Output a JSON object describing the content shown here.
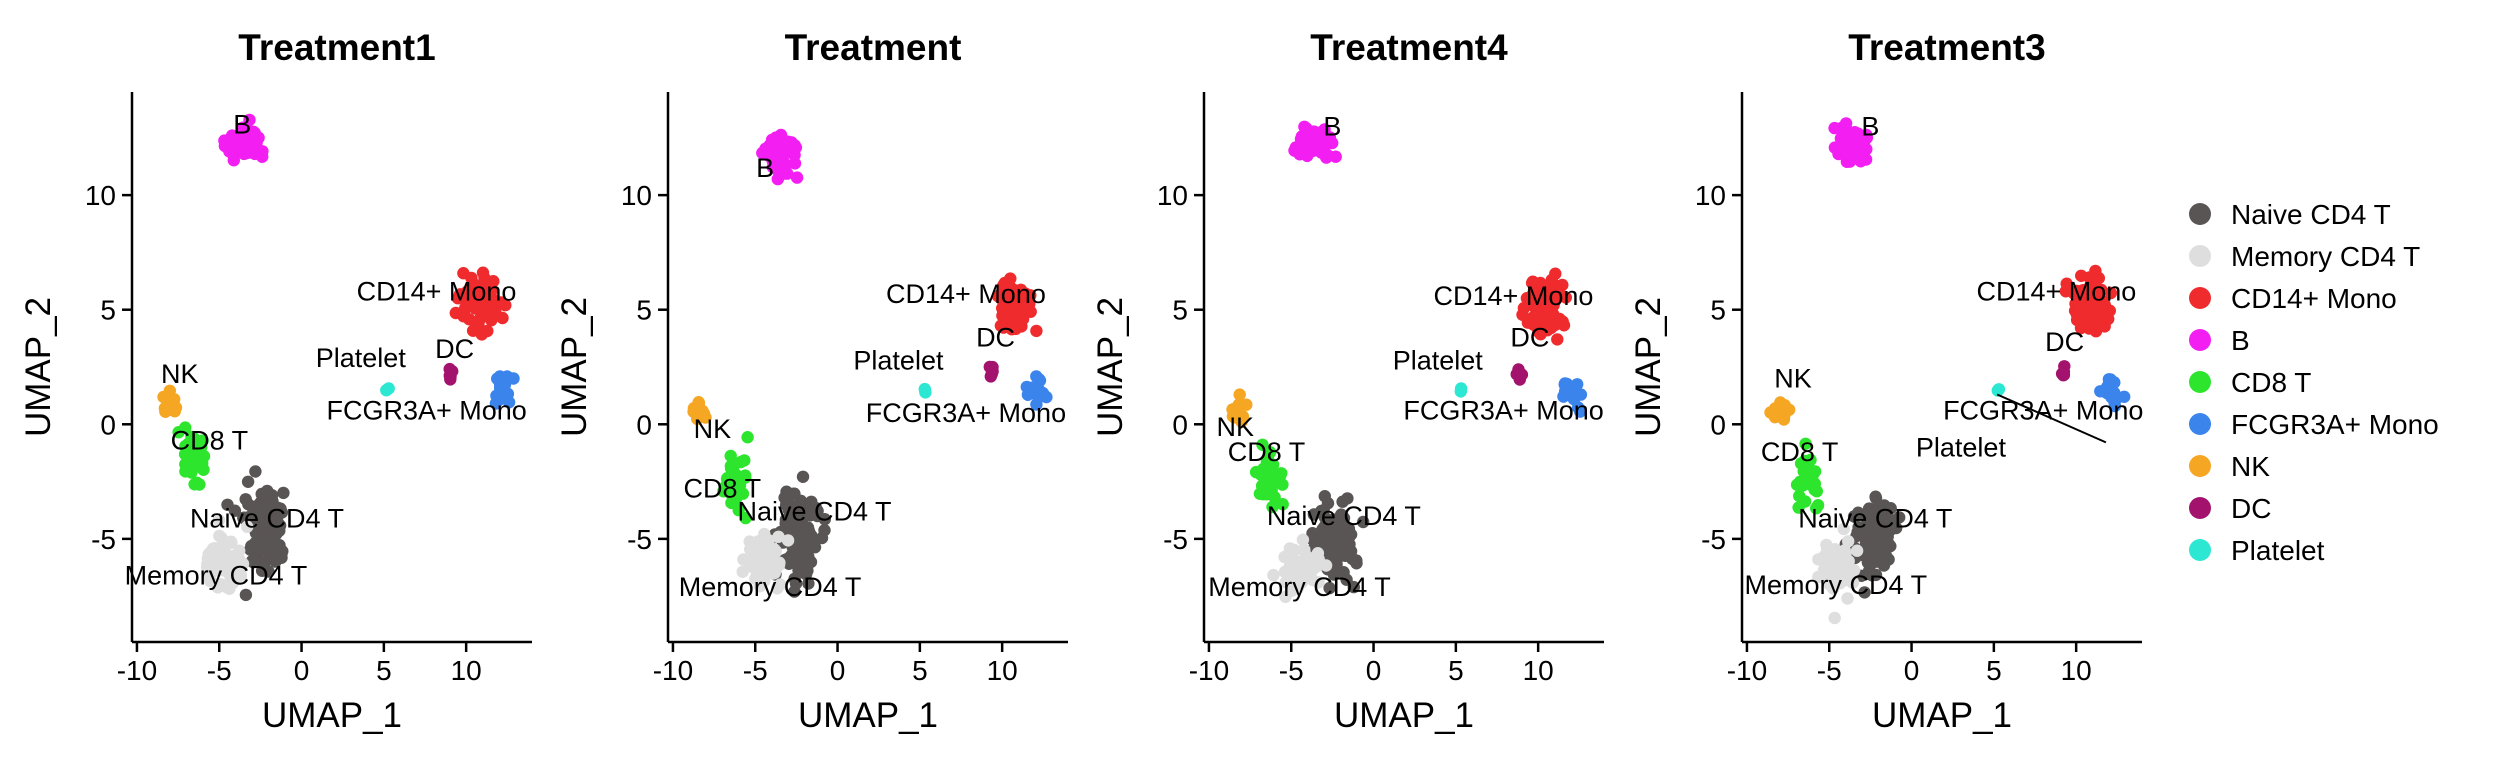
{
  "chart_data": [
    {
      "type": "scatter",
      "title": "Treatment1",
      "xlabel": "UMAP_1",
      "ylabel": "UMAP_2",
      "xlim": [
        -10.3,
        14
      ],
      "ylim": [
        -9.5,
        14.5
      ],
      "xticks": [
        -10,
        -5,
        0,
        5,
        10
      ],
      "yticks": [
        -5,
        0,
        5,
        10
      ],
      "clusters": [
        {
          "name": "B",
          "center": [
            -3.5,
            12.2
          ],
          "spread": [
            1.0,
            0.8
          ],
          "n": 55
        },
        {
          "name": "CD14+ Mono",
          "center": [
            10.8,
            5.3
          ],
          "spread": [
            1.1,
            1.2
          ],
          "n": 75
        },
        {
          "name": "DC",
          "center": [
            9.2,
            2.2
          ],
          "spread": [
            0.25,
            0.3
          ],
          "n": 5
        },
        {
          "name": "FCGR3A+ Mono",
          "center": [
            12.3,
            1.6
          ],
          "spread": [
            0.5,
            0.6
          ],
          "n": 20
        },
        {
          "name": "Platelet",
          "center": [
            5.2,
            1.5
          ],
          "spread": [
            0.1,
            0.1
          ],
          "n": 2
        },
        {
          "name": "NK",
          "center": [
            -8.0,
            0.8
          ],
          "spread": [
            0.5,
            0.45
          ],
          "n": 18
        },
        {
          "name": "CD8 T",
          "center": [
            -6.5,
            -1.5
          ],
          "spread": [
            0.6,
            1.1
          ],
          "n": 38
        },
        {
          "name": "Naive CD4 T",
          "center": [
            -2.3,
            -4.8
          ],
          "spread": [
            1.0,
            1.6
          ],
          "n": 120
        },
        {
          "name": "Memory CD4 T",
          "center": [
            -4.8,
            -6.0
          ],
          "spread": [
            1.1,
            1.0
          ],
          "n": 70
        }
      ],
      "labels": [
        {
          "text": "B",
          "at": [
            -3.6,
            12.7
          ]
        },
        {
          "text": "CD14+ Mono",
          "at": [
            8.2,
            5.4
          ]
        },
        {
          "text": "Platelet",
          "at": [
            3.6,
            2.5
          ]
        },
        {
          "text": "DC",
          "at": [
            9.3,
            2.9
          ]
        },
        {
          "text": "FCGR3A+ Mono",
          "at": [
            7.6,
            0.2
          ]
        },
        {
          "text": "NK",
          "at": [
            -7.4,
            1.8
          ]
        },
        {
          "text": "CD8 T",
          "at": [
            -5.6,
            -1.1
          ]
        },
        {
          "text": "Naive CD4 T",
          "at": [
            -2.1,
            -4.5
          ]
        },
        {
          "text": "Memory CD4 T",
          "at": [
            -5.2,
            -7.0
          ]
        }
      ]
    },
    {
      "type": "scatter",
      "title": "Treatment",
      "xlabel": "UMAP_1",
      "ylabel": "UMAP_2",
      "xlim": [
        -10.3,
        14
      ],
      "ylim": [
        -9.5,
        14.5
      ],
      "xticks": [
        -10,
        -5,
        0,
        5,
        10
      ],
      "yticks": [
        -5,
        0,
        5,
        10
      ],
      "clusters": [
        {
          "name": "B",
          "center": [
            -3.3,
            11.8
          ],
          "spread": [
            0.9,
            0.8
          ],
          "n": 55
        },
        {
          "name": "CD14+ Mono",
          "center": [
            10.6,
            5.2
          ],
          "spread": [
            1.0,
            1.1
          ],
          "n": 75
        },
        {
          "name": "DC",
          "center": [
            9.3,
            2.3
          ],
          "spread": [
            0.25,
            0.3
          ],
          "n": 5
        },
        {
          "name": "FCGR3A+ Mono",
          "center": [
            12.1,
            1.5
          ],
          "spread": [
            0.5,
            0.6
          ],
          "n": 20
        },
        {
          "name": "Platelet",
          "center": [
            5.3,
            1.5
          ],
          "spread": [
            0.1,
            0.1
          ],
          "n": 2
        },
        {
          "name": "NK",
          "center": [
            -8.4,
            0.6
          ],
          "spread": [
            0.45,
            0.45
          ],
          "n": 18
        },
        {
          "name": "CD8 T",
          "center": [
            -6.2,
            -2.5
          ],
          "spread": [
            0.6,
            1.2
          ],
          "n": 38
        },
        {
          "name": "Naive CD4 T",
          "center": [
            -2.5,
            -4.9
          ],
          "spread": [
            1.0,
            1.5
          ],
          "n": 120
        },
        {
          "name": "Memory CD4 T",
          "center": [
            -4.5,
            -6.0
          ],
          "spread": [
            1.1,
            1.0
          ],
          "n": 70
        }
      ],
      "labels": [
        {
          "text": "B",
          "at": [
            -4.4,
            10.8
          ]
        },
        {
          "text": "CD14+ Mono",
          "at": [
            7.8,
            5.3
          ]
        },
        {
          "text": "Platelet",
          "at": [
            3.7,
            2.4
          ]
        },
        {
          "text": "DC",
          "at": [
            9.6,
            3.4
          ]
        },
        {
          "text": "FCGR3A+ Mono",
          "at": [
            7.8,
            0.1
          ]
        },
        {
          "text": "NK",
          "at": [
            -7.6,
            -0.6
          ]
        },
        {
          "text": "CD8 T",
          "at": [
            -7.0,
            -3.2
          ]
        },
        {
          "text": "Naive CD4 T",
          "at": [
            -1.4,
            -4.2
          ]
        },
        {
          "text": "Memory CD4 T",
          "at": [
            -4.1,
            -7.5
          ]
        }
      ]
    },
    {
      "type": "scatter",
      "title": "Treatment4",
      "xlabel": "UMAP_1",
      "ylabel": "UMAP_2",
      "xlim": [
        -10.3,
        14
      ],
      "ylim": [
        -9.5,
        14.5
      ],
      "xticks": [
        -10,
        -5,
        0,
        5,
        10
      ],
      "yticks": [
        -5,
        0,
        5,
        10
      ],
      "clusters": [
        {
          "name": "B",
          "center": [
            -3.5,
            12.3
          ],
          "spread": [
            0.9,
            0.7
          ],
          "n": 55
        },
        {
          "name": "CD14+ Mono",
          "center": [
            10.6,
            5.2
          ],
          "spread": [
            1.0,
            1.2
          ],
          "n": 75
        },
        {
          "name": "DC",
          "center": [
            8.9,
            2.2
          ],
          "spread": [
            0.3,
            0.3
          ],
          "n": 5
        },
        {
          "name": "FCGR3A+ Mono",
          "center": [
            12.0,
            1.5
          ],
          "spread": [
            0.5,
            0.6
          ],
          "n": 20
        },
        {
          "name": "Platelet",
          "center": [
            5.3,
            1.5
          ],
          "spread": [
            0.1,
            0.1
          ],
          "n": 2
        },
        {
          "name": "NK",
          "center": [
            -8.2,
            0.6
          ],
          "spread": [
            0.45,
            0.45
          ],
          "n": 18
        },
        {
          "name": "CD8 T",
          "center": [
            -6.2,
            -2.3
          ],
          "spread": [
            0.7,
            1.1
          ],
          "n": 38
        },
        {
          "name": "Naive CD4 T",
          "center": [
            -2.5,
            -5.0
          ],
          "spread": [
            1.1,
            1.5
          ],
          "n": 120
        },
        {
          "name": "Memory CD4 T",
          "center": [
            -4.6,
            -6.2
          ],
          "spread": [
            1.1,
            1.0
          ],
          "n": 70
        }
      ],
      "labels": [
        {
          "text": "B",
          "at": [
            -2.5,
            12.6
          ]
        },
        {
          "text": "CD14+ Mono",
          "at": [
            8.5,
            5.2
          ]
        },
        {
          "text": "Platelet",
          "at": [
            3.9,
            2.4
          ]
        },
        {
          "text": "DC",
          "at": [
            9.5,
            3.4
          ]
        },
        {
          "text": "FCGR3A+ Mono",
          "at": [
            7.9,
            0.2
          ]
        },
        {
          "text": "NK",
          "at": [
            -8.4,
            -0.5
          ]
        },
        {
          "text": "CD8 T",
          "at": [
            -6.5,
            -1.6
          ]
        },
        {
          "text": "Naive CD4 T",
          "at": [
            -1.8,
            -4.4
          ]
        },
        {
          "text": "Memory CD4 T",
          "at": [
            -4.5,
            -7.5
          ]
        }
      ]
    },
    {
      "type": "scatter",
      "title": "Treatment3",
      "xlabel": "UMAP_1",
      "ylabel": "UMAP_2",
      "xlim": [
        -10.3,
        14
      ],
      "ylim": [
        -9.5,
        14.5
      ],
      "xticks": [
        -10,
        -5,
        0,
        5,
        10
      ],
      "yticks": [
        -5,
        0,
        5,
        10
      ],
      "clusters": [
        {
          "name": "B",
          "center": [
            -3.5,
            12.3
          ],
          "spread": [
            0.9,
            0.7
          ],
          "n": 55
        },
        {
          "name": "CD14+ Mono",
          "center": [
            10.8,
            5.3
          ],
          "spread": [
            1.1,
            1.2
          ],
          "n": 75
        },
        {
          "name": "DC",
          "center": [
            9.2,
            2.3
          ],
          "spread": [
            0.25,
            0.3
          ],
          "n": 5
        },
        {
          "name": "FCGR3A+ Mono",
          "center": [
            12.0,
            1.5
          ],
          "spread": [
            0.5,
            0.6
          ],
          "n": 20
        },
        {
          "name": "Platelet",
          "center": [
            5.3,
            1.5
          ],
          "spread": [
            0.1,
            0.1
          ],
          "n": 2
        },
        {
          "name": "NK",
          "center": [
            -8.0,
            0.6
          ],
          "spread": [
            0.5,
            0.45
          ],
          "n": 18
        },
        {
          "name": "CD8 T",
          "center": [
            -6.2,
            -2.4
          ],
          "spread": [
            0.6,
            1.2
          ],
          "n": 38
        },
        {
          "name": "Naive CD4 T",
          "center": [
            -2.3,
            -5.0
          ],
          "spread": [
            1.0,
            1.6
          ],
          "n": 120
        },
        {
          "name": "Memory CD4 T",
          "center": [
            -4.5,
            -6.2
          ],
          "spread": [
            1.1,
            1.0
          ],
          "n": 70
        }
      ],
      "labels": [
        {
          "text": "B",
          "at": [
            -2.5,
            12.6
          ]
        },
        {
          "text": "CD14+ Mono",
          "at": [
            8.8,
            5.4
          ]
        },
        {
          "text": "DC",
          "at": [
            9.3,
            3.2
          ]
        },
        {
          "text": "FCGR3A+ Mono",
          "at": [
            8.0,
            0.2
          ]
        },
        {
          "text": "Platelet",
          "at": [
            3.0,
            -1.4
          ],
          "leader_to": [
            5.2,
            1.3
          ]
        },
        {
          "text": "NK",
          "at": [
            -7.2,
            1.6
          ]
        },
        {
          "text": "CD8 T",
          "at": [
            -6.8,
            -1.6
          ]
        },
        {
          "text": "Naive CD4 T",
          "at": [
            -2.2,
            -4.5
          ]
        },
        {
          "text": "Memory CD4 T",
          "at": [
            -4.6,
            -7.4
          ]
        }
      ]
    }
  ],
  "legend": {
    "placement": "right",
    "items": [
      {
        "label": "Naive CD4 T",
        "color": "#5a5555"
      },
      {
        "label": "Memory CD4 T",
        "color": "#dedede"
      },
      {
        "label": "CD14+ Mono",
        "color": "#ef2b2d"
      },
      {
        "label": "B",
        "color": "#f21ef2"
      },
      {
        "label": "CD8 T",
        "color": "#2ee52e"
      },
      {
        "label": "FCGR3A+ Mono",
        "color": "#3a84ec"
      },
      {
        "label": "NK",
        "color": "#f5a623"
      },
      {
        "label": "DC",
        "color": "#a3126d"
      },
      {
        "label": "Platelet",
        "color": "#2ce8d2"
      }
    ]
  }
}
